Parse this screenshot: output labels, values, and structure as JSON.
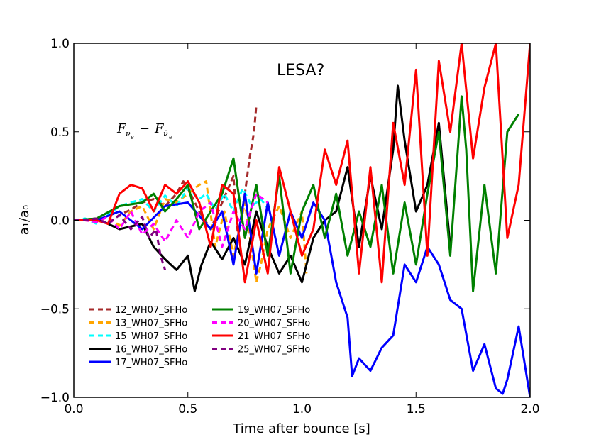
{
  "chart_data": {
    "type": "line",
    "title": "",
    "xlabel": "Time after bounce [s]",
    "ylabel": "a₁/a₀",
    "xlim": [
      0.0,
      2.0
    ],
    "ylim": [
      -1.0,
      1.0
    ],
    "xticks": [
      0.0,
      0.5,
      1.0,
      1.5,
      2.0
    ],
    "xtick_labels": [
      "0.0",
      "0.5",
      "1.0",
      "1.5",
      "2.0"
    ],
    "yticks": [
      -1.0,
      -0.5,
      0.0,
      0.5,
      1.0
    ],
    "ytick_labels": [
      "−1.0",
      "−0.5",
      "0.0",
      "0.5",
      "1.0"
    ],
    "grid": false,
    "legend_position": "lower-left",
    "annotations": {
      "lesa": "LESA?",
      "formula_main_1": "F",
      "formula_sub_1": "ν",
      "formula_subsub_1": "e",
      "formula_minus": "−",
      "formula_main_2": "F",
      "formula_sub_2": "ν̄",
      "formula_subsub_2": "e"
    },
    "series": [
      {
        "name": "12_WH07_SFHo",
        "color": "#a52a2a",
        "dash": "dashed",
        "x": [
          0.0,
          0.05,
          0.1,
          0.15,
          0.2,
          0.25,
          0.3,
          0.35,
          0.4,
          0.45,
          0.48,
          0.5,
          0.55,
          0.6,
          0.65,
          0.7,
          0.72,
          0.75,
          0.77,
          0.79,
          0.8
        ],
        "y": [
          0.0,
          0.0,
          0.01,
          -0.02,
          0.03,
          0.06,
          0.1,
          0.12,
          0.08,
          0.15,
          0.22,
          0.18,
          0.05,
          -0.05,
          0.1,
          0.25,
          -0.1,
          0.15,
          0.35,
          0.5,
          0.65
        ]
      },
      {
        "name": "13_WH07_SFHo",
        "color": "#ffa500",
        "dash": "dashed",
        "x": [
          0.0,
          0.05,
          0.1,
          0.15,
          0.2,
          0.25,
          0.3,
          0.35,
          0.4,
          0.45,
          0.5,
          0.55,
          0.58,
          0.62,
          0.66,
          0.7,
          0.75,
          0.8,
          0.82,
          0.85,
          0.9,
          0.95,
          1.0,
          1.02
        ],
        "y": [
          0.0,
          0.0,
          -0.01,
          0.02,
          -0.03,
          0.05,
          0.08,
          -0.05,
          0.12,
          0.1,
          0.15,
          0.2,
          0.22,
          -0.15,
          0.05,
          -0.2,
          0.1,
          -0.35,
          -0.25,
          -0.05,
          0.08,
          -0.1,
          0.05,
          -0.3
        ]
      },
      {
        "name": "15_WH07_SFHo",
        "color": "#00ffff",
        "dash": "dashed",
        "x": [
          0.0,
          0.05,
          0.1,
          0.15,
          0.2,
          0.25,
          0.3,
          0.35,
          0.4,
          0.45,
          0.5,
          0.55,
          0.58,
          0.62,
          0.66,
          0.7,
          0.74,
          0.78,
          0.82,
          0.86
        ],
        "y": [
          0.0,
          0.01,
          -0.02,
          0.03,
          0.08,
          0.1,
          0.12,
          0.05,
          0.14,
          0.08,
          0.18,
          0.12,
          0.15,
          0.06,
          0.15,
          0.05,
          0.18,
          0.08,
          0.12,
          0.05
        ]
      },
      {
        "name": "16_WH07_SFHo",
        "color": "#000000",
        "dash": "solid",
        "x": [
          0.0,
          0.1,
          0.2,
          0.3,
          0.35,
          0.4,
          0.45,
          0.5,
          0.53,
          0.56,
          0.6,
          0.65,
          0.7,
          0.75,
          0.8,
          0.85,
          0.9,
          0.95,
          1.0,
          1.05,
          1.1,
          1.15,
          1.2,
          1.25,
          1.3,
          1.35,
          1.4,
          1.42,
          1.45,
          1.5,
          1.55,
          1.6,
          1.65
        ],
        "y": [
          0.0,
          0.01,
          -0.05,
          -0.02,
          -0.15,
          -0.22,
          -0.28,
          -0.2,
          -0.4,
          -0.25,
          -0.12,
          -0.22,
          -0.1,
          -0.25,
          0.05,
          -0.15,
          -0.3,
          -0.2,
          -0.35,
          -0.1,
          0.0,
          0.05,
          0.3,
          -0.15,
          0.25,
          -0.05,
          0.4,
          0.76,
          0.45,
          0.05,
          0.2,
          0.55,
          -0.15
        ]
      },
      {
        "name": "17_WH07_SFHo",
        "color": "#0000ff",
        "dash": "solid",
        "x": [
          0.0,
          0.1,
          0.2,
          0.3,
          0.4,
          0.5,
          0.6,
          0.65,
          0.7,
          0.75,
          0.8,
          0.85,
          0.9,
          0.95,
          1.0,
          1.05,
          1.1,
          1.15,
          1.2,
          1.22,
          1.25,
          1.3,
          1.35,
          1.4,
          1.45,
          1.5,
          1.55,
          1.6,
          1.65,
          1.7,
          1.75,
          1.8,
          1.85,
          1.88,
          1.9,
          1.95,
          2.0
        ],
        "y": [
          0.0,
          0.0,
          0.05,
          -0.05,
          0.08,
          0.1,
          -0.05,
          0.05,
          -0.25,
          0.15,
          -0.3,
          0.1,
          -0.2,
          0.05,
          -0.1,
          0.1,
          0.0,
          -0.35,
          -0.55,
          -0.88,
          -0.78,
          -0.85,
          -0.72,
          -0.65,
          -0.25,
          -0.35,
          -0.15,
          -0.25,
          -0.45,
          -0.5,
          -0.85,
          -0.7,
          -0.95,
          -0.98,
          -0.9,
          -0.6,
          -1.0
        ]
      },
      {
        "name": "19_WH07_SFHo",
        "color": "#008000",
        "dash": "solid",
        "x": [
          0.0,
          0.1,
          0.2,
          0.3,
          0.35,
          0.4,
          0.45,
          0.5,
          0.55,
          0.6,
          0.65,
          0.7,
          0.75,
          0.8,
          0.85,
          0.9,
          0.95,
          1.0,
          1.05,
          1.1,
          1.15,
          1.2,
          1.25,
          1.3,
          1.35,
          1.4,
          1.45,
          1.5,
          1.55,
          1.6,
          1.65,
          1.7,
          1.72,
          1.75,
          1.8,
          1.85,
          1.9,
          1.95
        ],
        "y": [
          0.0,
          0.01,
          0.08,
          0.1,
          0.15,
          0.05,
          0.12,
          0.2,
          -0.05,
          0.05,
          0.15,
          0.35,
          -0.1,
          0.2,
          -0.2,
          0.25,
          -0.3,
          0.05,
          0.2,
          -0.1,
          0.15,
          -0.2,
          0.05,
          -0.15,
          0.2,
          -0.3,
          0.1,
          -0.25,
          0.15,
          0.5,
          -0.2,
          0.7,
          0.4,
          -0.4,
          0.2,
          -0.3,
          0.5,
          0.6
        ]
      },
      {
        "name": "20_WH07_SFHo",
        "color": "#ff00ff",
        "dash": "dashed",
        "x": [
          0.0,
          0.05,
          0.1,
          0.15,
          0.2,
          0.25,
          0.3,
          0.35,
          0.4,
          0.45,
          0.5,
          0.55,
          0.6,
          0.65,
          0.7,
          0.75,
          0.8,
          0.85
        ],
        "y": [
          0.0,
          0.0,
          -0.01,
          0.02,
          -0.05,
          0.05,
          -0.08,
          -0.02,
          -0.12,
          0.0,
          -0.1,
          0.05,
          0.1,
          -0.15,
          0.05,
          -0.05,
          0.15,
          0.1
        ]
      },
      {
        "name": "21_WH07_SFHo",
        "color": "#ff0000",
        "dash": "solid",
        "x": [
          0.0,
          0.1,
          0.15,
          0.2,
          0.25,
          0.3,
          0.35,
          0.4,
          0.45,
          0.5,
          0.55,
          0.6,
          0.65,
          0.7,
          0.75,
          0.8,
          0.85,
          0.9,
          0.95,
          1.0,
          1.05,
          1.1,
          1.15,
          1.2,
          1.25,
          1.3,
          1.35,
          1.4,
          1.45,
          1.5,
          1.55,
          1.6,
          1.65,
          1.7,
          1.75,
          1.8,
          1.85,
          1.9,
          1.95,
          2.0
        ],
        "y": [
          0.0,
          0.0,
          -0.02,
          0.15,
          0.2,
          0.18,
          0.05,
          0.2,
          0.15,
          0.22,
          0.1,
          -0.15,
          0.2,
          0.15,
          -0.35,
          0.0,
          -0.3,
          0.3,
          0.05,
          -0.2,
          -0.05,
          0.4,
          0.2,
          0.45,
          -0.3,
          0.3,
          -0.35,
          0.55,
          0.2,
          0.85,
          -0.2,
          0.9,
          0.5,
          1.0,
          0.35,
          0.75,
          1.0,
          -0.1,
          0.2,
          1.0
        ]
      },
      {
        "name": "25_WH07_SFHo",
        "color": "#800080",
        "dash": "dashed",
        "x": [
          0.0,
          0.05,
          0.1,
          0.15,
          0.2,
          0.25,
          0.3,
          0.33,
          0.36,
          0.38,
          0.4
        ],
        "y": [
          0.0,
          0.0,
          0.01,
          -0.02,
          0.03,
          -0.05,
          0.02,
          -0.1,
          -0.05,
          -0.2,
          -0.28
        ]
      }
    ]
  }
}
